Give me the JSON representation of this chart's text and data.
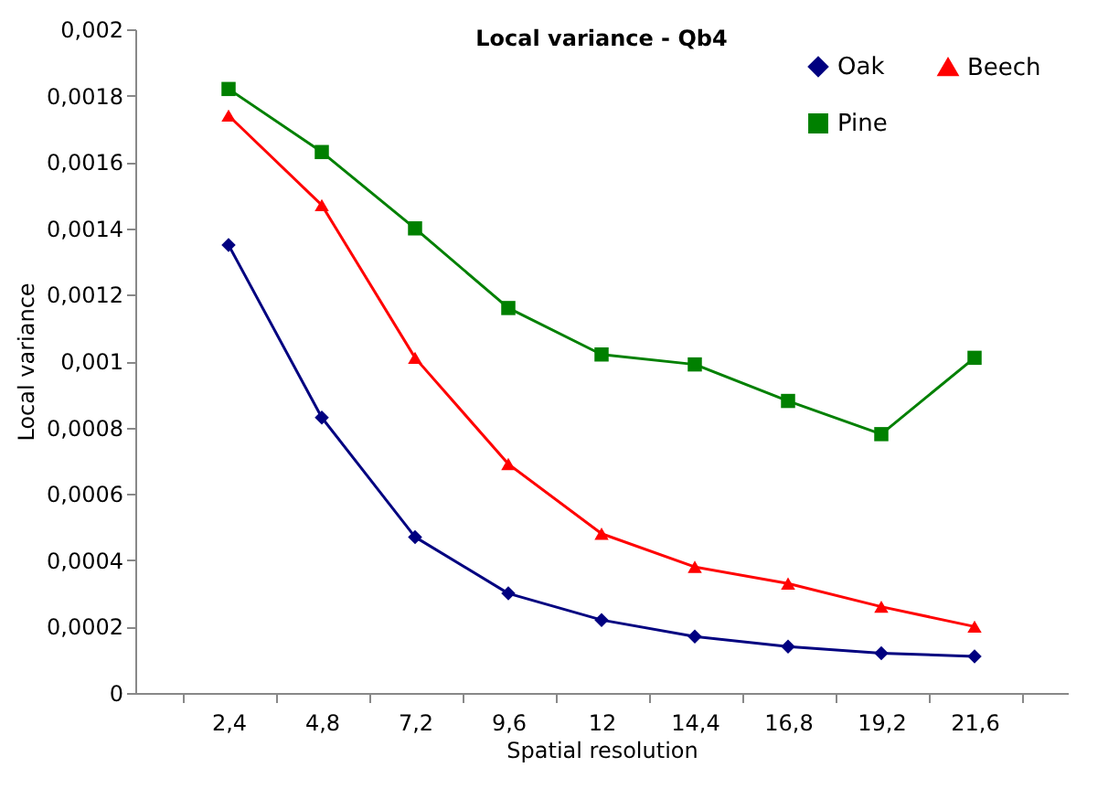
{
  "chart_data": {
    "type": "line",
    "title": "Local variance - Qb4",
    "xlabel": "Spatial resolution",
    "ylabel": "Local variance",
    "categories": [
      "2,4",
      "4,8",
      "7,2",
      "9,6",
      "12",
      "14,4",
      "16,8",
      "19,2",
      "21,6"
    ],
    "series": [
      {
        "name": "Oak",
        "color": "#000080",
        "marker": "diamond",
        "values": [
          0.00135,
          0.00083,
          0.00047,
          0.0003,
          0.00022,
          0.00017,
          0.00014,
          0.00012,
          0.00011
        ]
      },
      {
        "name": "Pine",
        "color": "#008000",
        "marker": "square",
        "values": [
          0.00182,
          0.00163,
          0.0014,
          0.00116,
          0.00102,
          0.00099,
          0.00088,
          0.00078,
          0.00101
        ]
      },
      {
        "name": "Beech",
        "color": "#ff0000",
        "marker": "triangle",
        "values": [
          0.00174,
          0.00147,
          0.00101,
          0.00069,
          0.00048,
          0.00038,
          0.00033,
          0.00026,
          0.0002
        ]
      }
    ],
    "ylim": [
      0,
      0.002
    ],
    "yticks": [
      {
        "value": 0,
        "label": "0"
      },
      {
        "value": 0.0002,
        "label": "0,0002"
      },
      {
        "value": 0.0004,
        "label": "0,0004"
      },
      {
        "value": 0.0006,
        "label": "0,0006"
      },
      {
        "value": 0.0008,
        "label": "0,0008"
      },
      {
        "value": 0.001,
        "label": "0,001"
      },
      {
        "value": 0.0012,
        "label": "0,0012"
      },
      {
        "value": 0.0014,
        "label": "0,0014"
      },
      {
        "value": 0.0016,
        "label": "0,0016"
      },
      {
        "value": 0.0018,
        "label": "0,0018"
      },
      {
        "value": 0.002,
        "label": "0,002"
      }
    ],
    "grid": false,
    "legend": "top right",
    "line_style": "solid"
  }
}
